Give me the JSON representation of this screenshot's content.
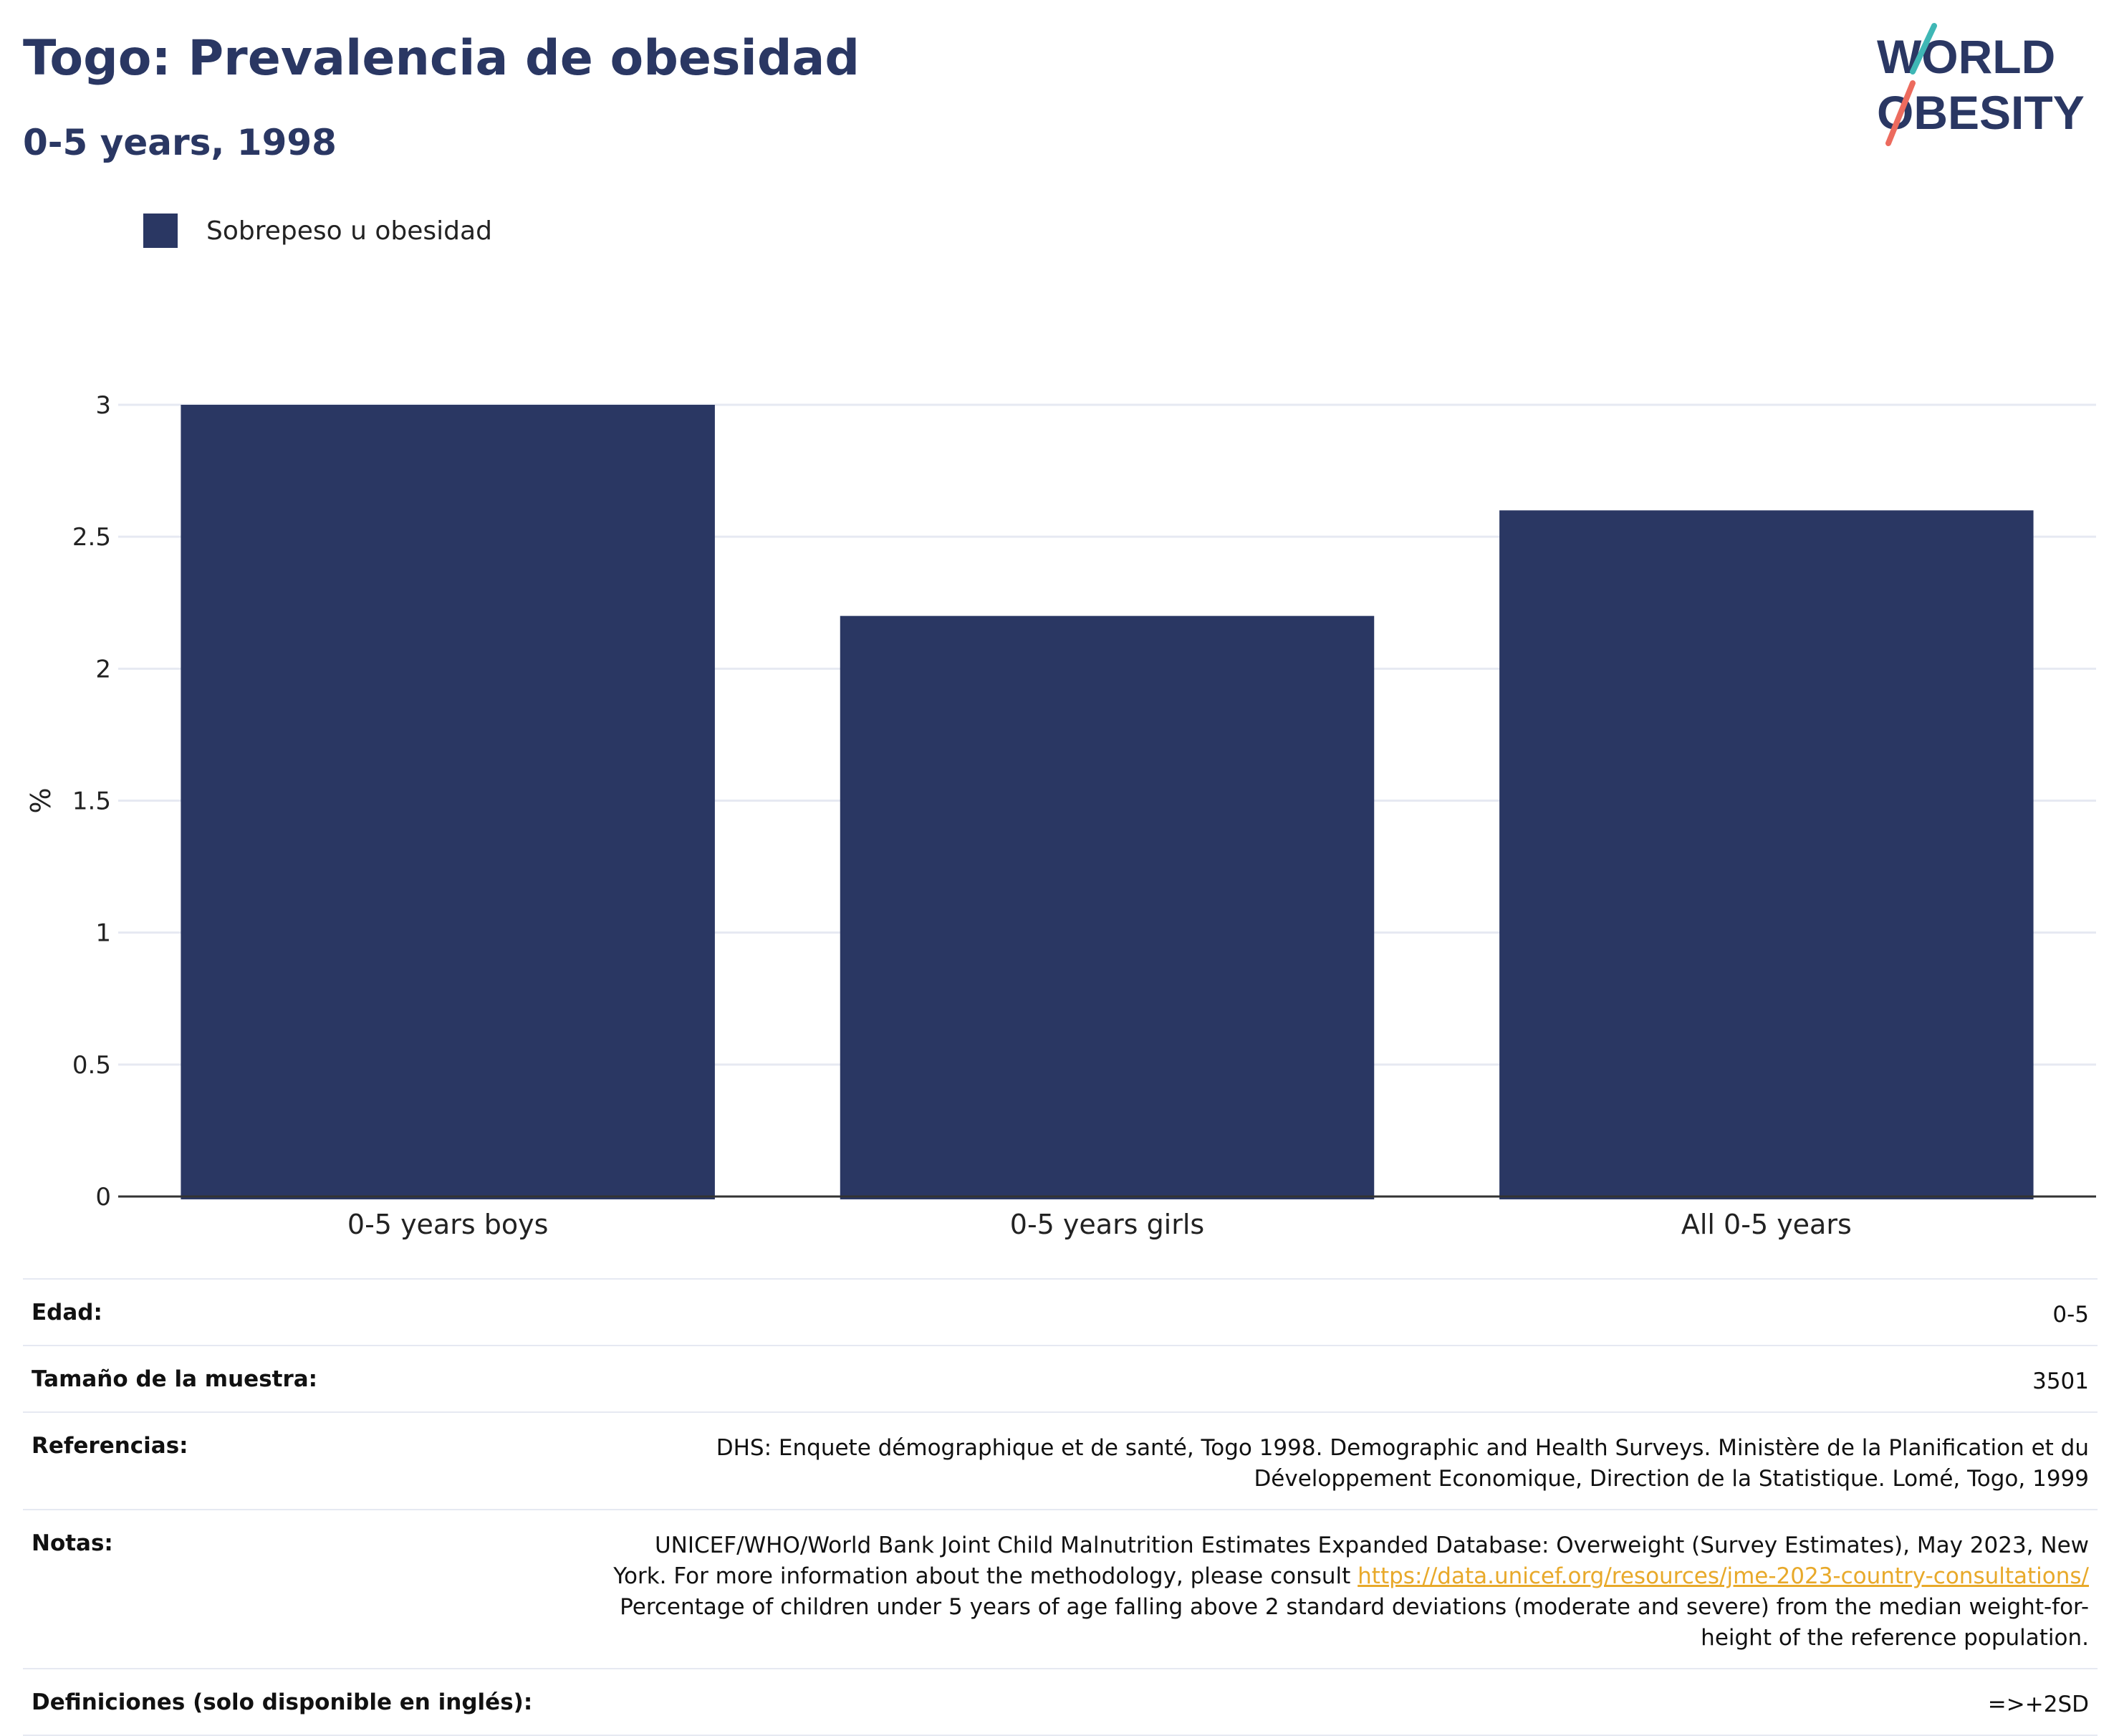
{
  "header": {
    "title": "Togo: Prevalencia de obesidad",
    "subtitle": "0-5 years, 1998"
  },
  "logo": {
    "line1": "WORLD",
    "line2": "OBESITY"
  },
  "legend": {
    "label": "Sobrepeso u obesidad",
    "color": "#2a3763"
  },
  "chart_data": {
    "type": "bar",
    "categories": [
      "0-5 years boys",
      "0-5 years girls",
      "All 0-5 years"
    ],
    "series": [
      {
        "name": "Sobrepeso u obesidad",
        "values": [
          3.0,
          2.2,
          2.6
        ]
      }
    ],
    "ylabel": "%",
    "ylim": [
      0,
      3
    ],
    "yticks": [
      "0",
      "0.5",
      "1",
      "1.5",
      "2",
      "2.5",
      "3"
    ],
    "grid": true,
    "legend_position": "top-left",
    "bar_color": "#2a3763"
  },
  "info": {
    "age": {
      "label": "Edad:",
      "value": "0-5"
    },
    "sample": {
      "label": "Tamaño de la muestra:",
      "value": "3501"
    },
    "references": {
      "label": "Referencias:",
      "line1": "DHS: Enquete démographique et de santé, Togo 1998. Demographic and Health Surveys. Ministère de la Planification et du",
      "line2": "Développement Economique, Direction de la Statistique. Lomé, Togo, 1999"
    },
    "notes": {
      "label": "Notas:",
      "line1": "UNICEF/WHO/World Bank Joint Child Malnutrition Estimates Expanded Database: Overweight (Survey Estimates), May 2023, New",
      "line2": "York. For more information about the methodology, please consult",
      "link": "https://data.unicef.org/resources/jme-2023-country-consultations/",
      "line3": "Percentage of children under 5 years of age falling above 2 standard deviations (moderate and severe) from the median weight-for-",
      "line4": "height of the reference population."
    },
    "definitions": {
      "label": "Definiciones (solo disponible en inglés):",
      "value": "=>+2SD"
    }
  },
  "colors": {
    "brand": "#2a3763",
    "teal": "#3fb7b5",
    "coral": "#ec6b5e",
    "link": "#e8a92a"
  }
}
